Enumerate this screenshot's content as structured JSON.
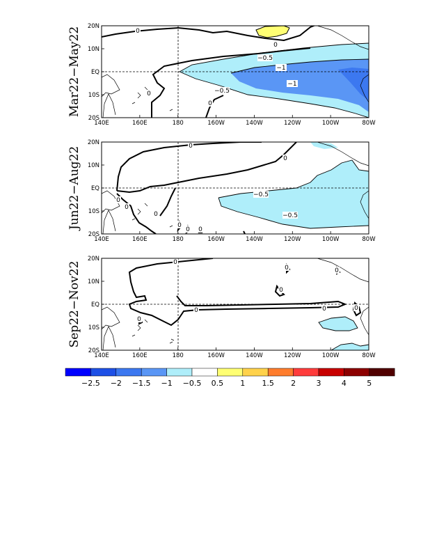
{
  "panels": [
    {
      "title": "Mar22−May22",
      "contour_labels": [
        "0",
        "0",
        "0",
        "0",
        "−0.5",
        "−0.5",
        "−1",
        "−1"
      ]
    },
    {
      "title": "Jun22−Aug22",
      "contour_labels": [
        "0",
        "0",
        "0",
        "0",
        "0",
        "0",
        "0",
        "0",
        "−0.5",
        "−0.5"
      ]
    },
    {
      "title": "Sep22−Nov22",
      "contour_labels": [
        "0",
        "0",
        "0",
        "0",
        "0",
        "0",
        "0",
        "0"
      ]
    }
  ],
  "x_ticks": [
    "140E",
    "160E",
    "180",
    "160W",
    "140W",
    "120W",
    "100W",
    "80W"
  ],
  "y_ticks": [
    "20N",
    "10N",
    "EQ",
    "10S",
    "20S"
  ],
  "legend": {
    "colors": [
      "#0000ff",
      "#1e50e6",
      "#3c78f0",
      "#5a96f5",
      "#afeefa",
      "#ffffff",
      "#ffff73",
      "#ffd24b",
      "#ff7d2d",
      "#ff3c3c",
      "#c80000",
      "#8c0000",
      "#500000"
    ],
    "labels": [
      "−2.5",
      "−2",
      "−1.5",
      "−1",
      "−0.5",
      "0.5",
      "1",
      "1.5",
      "2",
      "3",
      "4",
      "5"
    ]
  }
}
